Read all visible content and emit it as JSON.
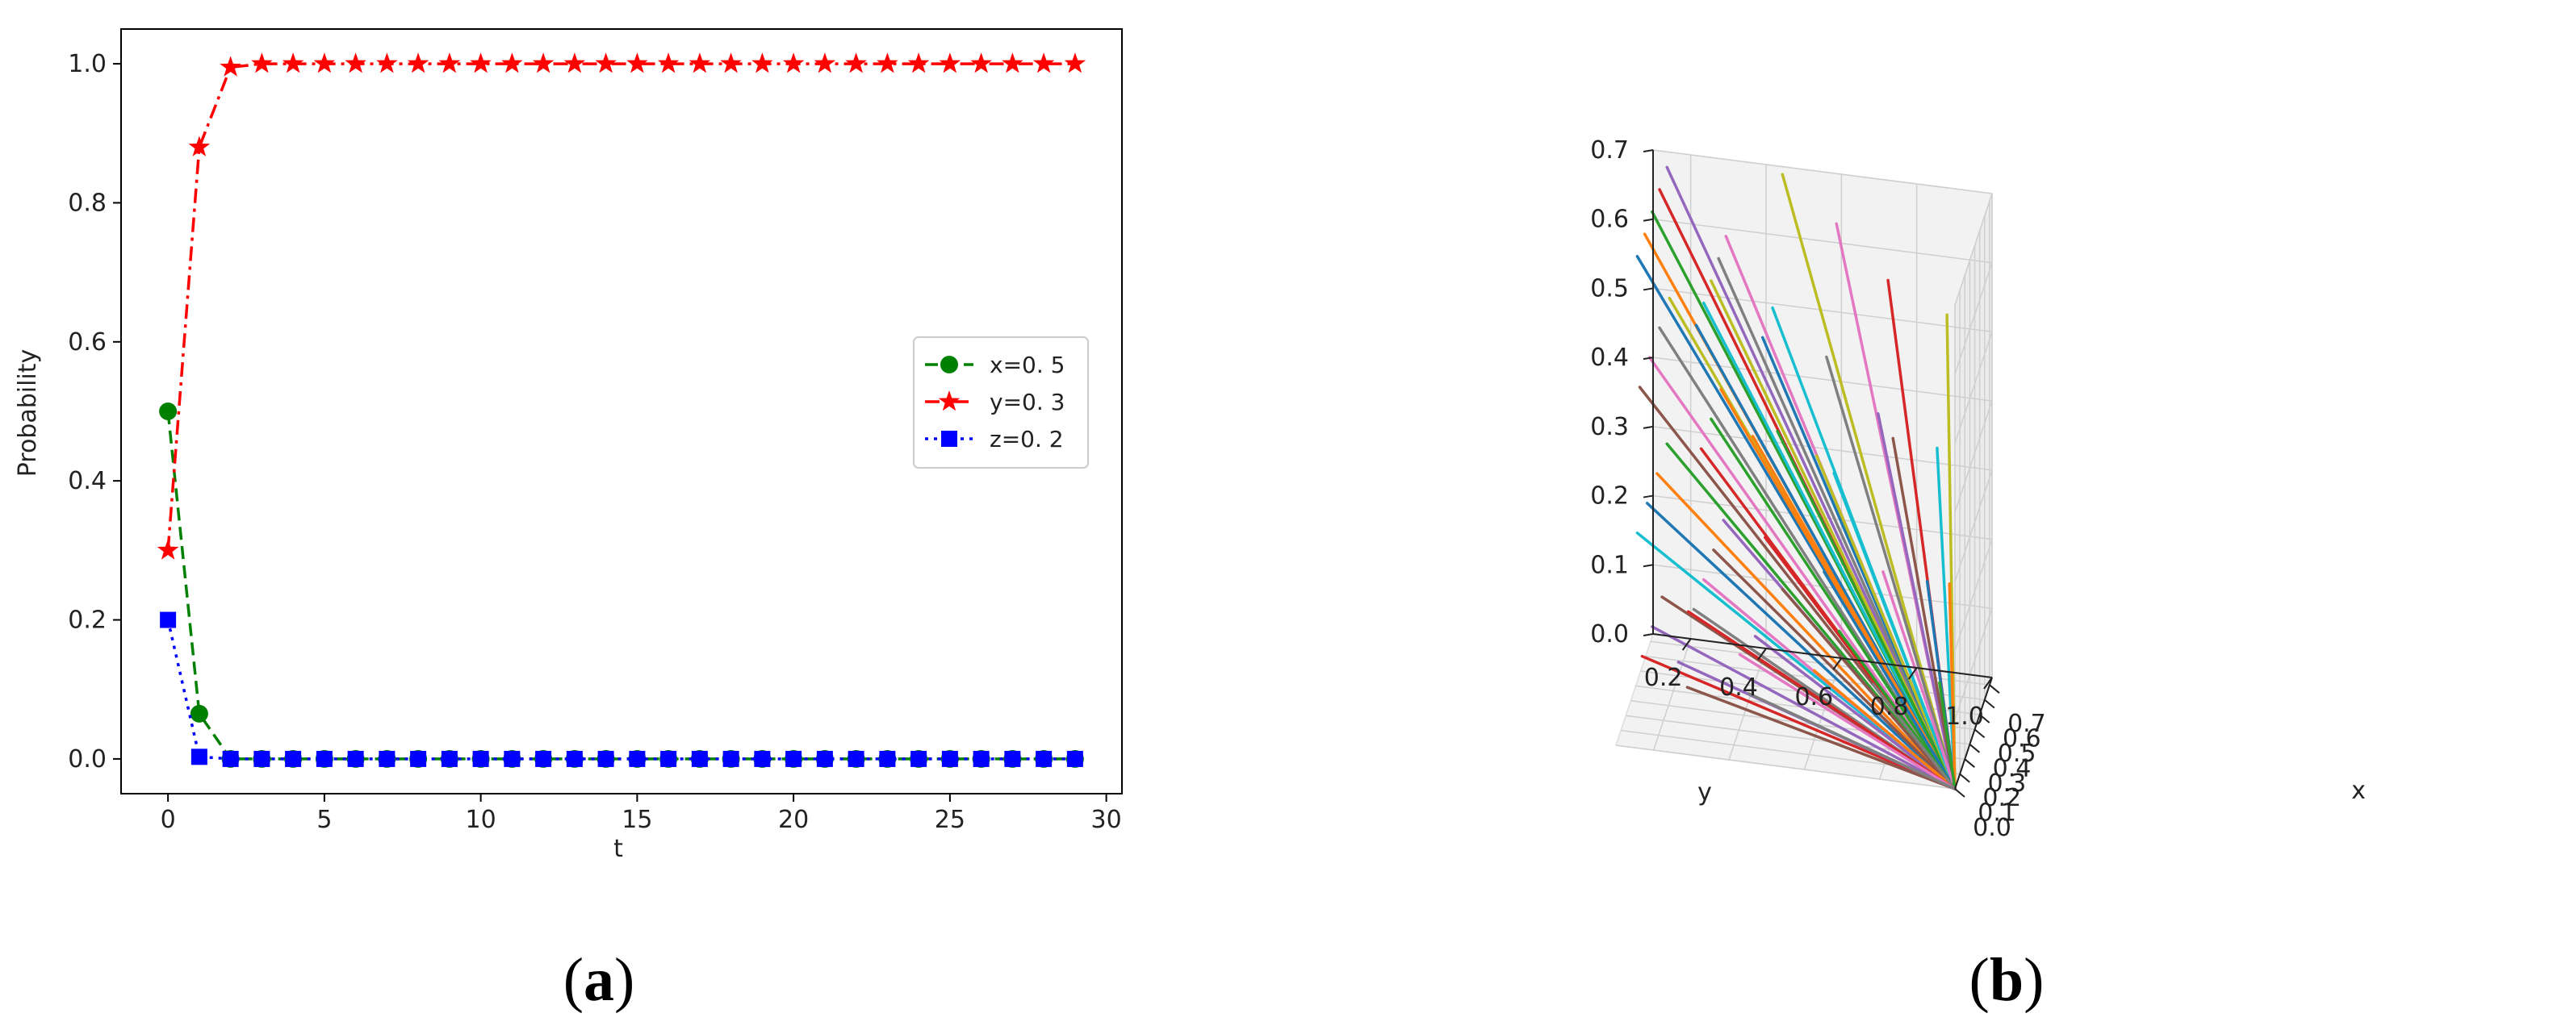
{
  "panel_labels": {
    "a": {
      "open": "(",
      "letter": "a",
      "close": ")"
    },
    "b": {
      "open": "(",
      "letter": "b",
      "close": ")"
    }
  },
  "chart_data": [
    {
      "type": "line",
      "title": "",
      "xlabel": "t",
      "ylabel": "Probability",
      "xlim": [
        -1.5,
        30.5
      ],
      "ylim": [
        -0.05,
        1.05
      ],
      "xticks": [
        "0",
        "5",
        "10",
        "15",
        "20",
        "25",
        "30"
      ],
      "yticks": [
        "0.0",
        "0.2",
        "0.4",
        "0.6",
        "0.8",
        "1.0"
      ],
      "grid": false,
      "legend_position": "center-right",
      "x": [
        0,
        1,
        2,
        3,
        4,
        5,
        6,
        7,
        8,
        9,
        10,
        11,
        12,
        13,
        14,
        15,
        16,
        17,
        18,
        19,
        20,
        21,
        22,
        23,
        24,
        25,
        26,
        27,
        28,
        29
      ],
      "series": [
        {
          "name": "x=0. 5",
          "color": "#008000",
          "line": "dashed",
          "marker": "circle",
          "values": [
            0.5,
            0.065,
            0.0,
            0,
            0,
            0,
            0,
            0,
            0,
            0,
            0,
            0,
            0,
            0,
            0,
            0,
            0,
            0,
            0,
            0,
            0,
            0,
            0,
            0,
            0,
            0,
            0,
            0,
            0,
            0
          ]
        },
        {
          "name": "y=0. 3",
          "color": "#ff0000",
          "line": "dashdot",
          "marker": "star",
          "values": [
            0.3,
            0.88,
            0.995,
            1,
            1,
            1,
            1,
            1,
            1,
            1,
            1,
            1,
            1,
            1,
            1,
            1,
            1,
            1,
            1,
            1,
            1,
            1,
            1,
            1,
            1,
            1,
            1,
            1,
            1,
            1
          ]
        },
        {
          "name": "z=0. 2",
          "color": "#0000ff",
          "line": "dotted",
          "marker": "square",
          "values": [
            0.2,
            0.003,
            0.0,
            0,
            0,
            0,
            0,
            0,
            0,
            0,
            0,
            0,
            0,
            0,
            0,
            0,
            0,
            0,
            0,
            0,
            0,
            0,
            0,
            0,
            0,
            0,
            0,
            0,
            0,
            0
          ]
        }
      ]
    },
    {
      "type": "line",
      "projection": "3d",
      "title": "",
      "xlabel": "x",
      "ylabel": "y",
      "zlabel": "",
      "xlim": [
        0.0,
        0.75
      ],
      "ylim": [
        0.1,
        1.0
      ],
      "zlim": [
        0.0,
        0.7
      ],
      "xticks": [
        "0.0",
        "0.1",
        "0.2",
        "0.3",
        "0.4",
        "0.5",
        "0.6",
        "0.7"
      ],
      "yticks": [
        "0.2",
        "0.4",
        "0.6",
        "0.8",
        "1.0"
      ],
      "zticks": [
        "0.0",
        "0.1",
        "0.2",
        "0.3",
        "0.4",
        "0.5",
        "0.6",
        "0.7"
      ],
      "grid": true,
      "note_series": "trajectories from various initial points (x0, y0, z0) converging to (0, 1, 0)",
      "palette": [
        "#1f77b4",
        "#ff7f0e",
        "#2ca02c",
        "#d62728",
        "#9467bd",
        "#8c564b",
        "#e377c2",
        "#7f7f7f",
        "#bcbd22",
        "#17becf"
      ],
      "end_point": [
        0,
        1,
        0
      ],
      "start_points": [
        [
          0.05,
          0.15,
          0.7
        ],
        [
          0.2,
          0.15,
          0.7
        ],
        [
          0.35,
          0.15,
          0.7
        ],
        [
          0.5,
          0.15,
          0.7
        ],
        [
          0.65,
          0.15,
          0.7
        ],
        [
          0.1,
          0.15,
          0.5
        ],
        [
          0.3,
          0.15,
          0.5
        ],
        [
          0.5,
          0.15,
          0.5
        ],
        [
          0.7,
          0.15,
          0.5
        ],
        [
          0.05,
          0.15,
          0.3
        ],
        [
          0.25,
          0.15,
          0.3
        ],
        [
          0.45,
          0.15,
          0.3
        ],
        [
          0.65,
          0.15,
          0.3
        ],
        [
          0.15,
          0.15,
          0.1
        ],
        [
          0.35,
          0.15,
          0.1
        ],
        [
          0.55,
          0.15,
          0.1
        ],
        [
          0.7,
          0.3,
          0.6
        ],
        [
          0.55,
          0.3,
          0.6
        ],
        [
          0.4,
          0.3,
          0.6
        ],
        [
          0.25,
          0.3,
          0.6
        ],
        [
          0.1,
          0.3,
          0.6
        ],
        [
          0.6,
          0.3,
          0.4
        ],
        [
          0.4,
          0.3,
          0.4
        ],
        [
          0.2,
          0.3,
          0.4
        ],
        [
          0.65,
          0.3,
          0.2
        ],
        [
          0.45,
          0.3,
          0.2
        ],
        [
          0.25,
          0.3,
          0.2
        ],
        [
          0.05,
          0.3,
          0.2
        ],
        [
          0.7,
          0.45,
          0.7
        ],
        [
          0.5,
          0.45,
          0.55
        ],
        [
          0.3,
          0.45,
          0.55
        ],
        [
          0.1,
          0.45,
          0.45
        ],
        [
          0.6,
          0.45,
          0.35
        ],
        [
          0.35,
          0.45,
          0.25
        ],
        [
          0.15,
          0.45,
          0.15
        ],
        [
          0.7,
          0.45,
          0.1
        ],
        [
          0.65,
          0.6,
          0.65
        ],
        [
          0.45,
          0.6,
          0.5
        ],
        [
          0.25,
          0.6,
          0.4
        ],
        [
          0.6,
          0.6,
          0.3
        ],
        [
          0.4,
          0.6,
          0.2
        ],
        [
          0.2,
          0.6,
          0.1
        ],
        [
          0.7,
          0.6,
          0.05
        ],
        [
          0.55,
          0.75,
          0.6
        ],
        [
          0.35,
          0.75,
          0.45
        ],
        [
          0.65,
          0.75,
          0.35
        ],
        [
          0.45,
          0.75,
          0.2
        ],
        [
          0.25,
          0.75,
          0.08
        ],
        [
          0.6,
          0.9,
          0.55
        ],
        [
          0.4,
          0.9,
          0.4
        ],
        [
          0.2,
          0.9,
          0.25
        ],
        [
          0.65,
          0.9,
          0.15
        ],
        [
          0.45,
          0.9,
          0.05
        ],
        [
          0.7,
          0.2,
          0.05
        ],
        [
          0.5,
          0.2,
          0.02
        ],
        [
          0.3,
          0.25,
          0.03
        ],
        [
          0.6,
          0.35,
          0.02
        ],
        [
          0.4,
          0.4,
          0.01
        ]
      ]
    }
  ]
}
